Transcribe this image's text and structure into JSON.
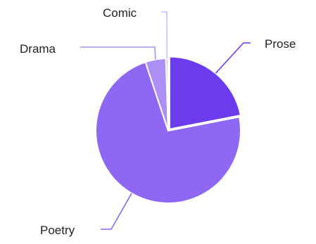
{
  "chart_data": {
    "type": "pie",
    "title": "",
    "slices": [
      {
        "label": "Prose",
        "value": 21.5,
        "color": "#6c3bee"
      },
      {
        "label": "Poetry",
        "value": 71.5,
        "color": "#8e67f2"
      },
      {
        "label": "Drama",
        "value": 4.5,
        "color": "#ab8ff5"
      },
      {
        "label": "Comic",
        "value": 0.5,
        "color": "#cdbcf9"
      }
    ],
    "legend": "none",
    "label_placement": "outside with leader lines"
  }
}
